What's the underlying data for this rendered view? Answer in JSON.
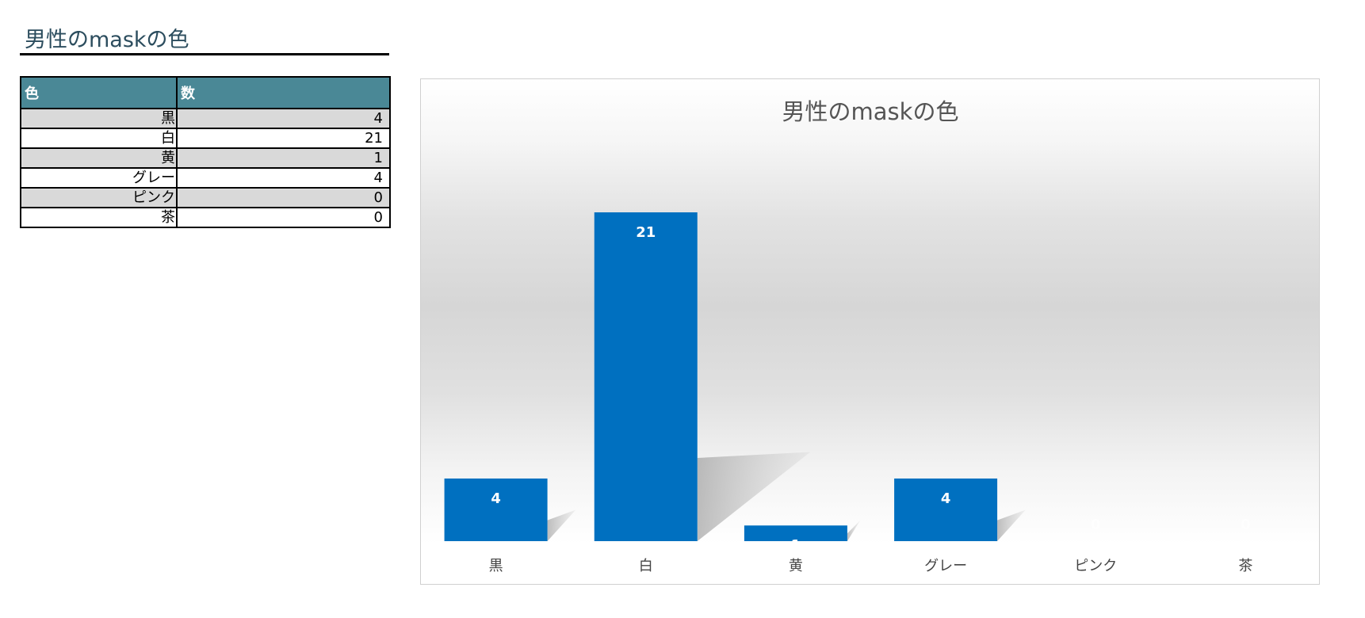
{
  "sheet": {
    "title": "男性のmaskの色"
  },
  "table": {
    "headers": [
      "色",
      "数"
    ],
    "rows": [
      {
        "label": "黒",
        "value": "4"
      },
      {
        "label": "白",
        "value": "21"
      },
      {
        "label": "黄",
        "value": "1"
      },
      {
        "label": "グレー",
        "value": "4"
      },
      {
        "label": "ピンク",
        "value": "0"
      },
      {
        "label": "茶",
        "value": "0"
      }
    ]
  },
  "colors": {
    "bar": "#0070c0",
    "header_fill": "#4a8896"
  },
  "chart_data": {
    "type": "bar",
    "title": "男性のmaskの色",
    "categories": [
      "黒",
      "白",
      "黄",
      "グレー",
      "ピンク",
      "茶"
    ],
    "values": [
      4,
      21,
      1,
      4,
      0,
      0
    ],
    "xlabel": "",
    "ylabel": "",
    "ylim": [
      0,
      25
    ],
    "grid": false,
    "legend": "none",
    "data_labels": true
  }
}
